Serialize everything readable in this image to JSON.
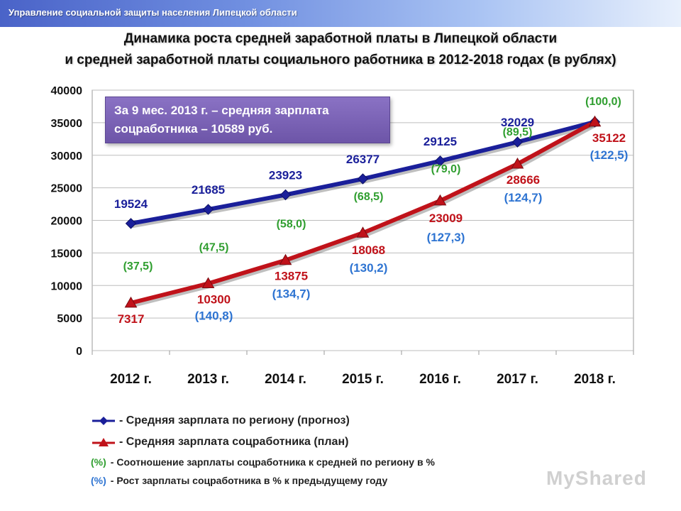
{
  "header": {
    "org": "Управление социальной защиты населения Липецкой области"
  },
  "title_line1": "Динамика роста средней заработной платы в Липецкой области",
  "title_line2": "и средней заработной платы социального работника в 2012-2018 годах (в рублях)",
  "callout_line1": "За 9 мес. 2013 г. – средняя зарплата",
  "callout_line2": "соцработника – 10589 руб.",
  "colors": {
    "region": "#1a1f9a",
    "social": "#c0121a",
    "ratio": "#2f9e2f",
    "growth": "#2e74d2",
    "grid": "#bdbdbd"
  },
  "chart_data": {
    "type": "line",
    "categories": [
      "2012 г.",
      "2013 г.",
      "2014 г.",
      "2015 г.",
      "2016 г.",
      "2017 г.",
      "2018 г."
    ],
    "ylim": [
      0,
      40000
    ],
    "yticks": [
      0,
      5000,
      10000,
      15000,
      20000,
      25000,
      30000,
      35000,
      40000
    ],
    "grid": true,
    "legend_position": "bottom",
    "series": [
      {
        "name": "- Средняя зарплата по региону (прогноз)",
        "values": [
          19524,
          21685,
          23923,
          26377,
          29125,
          32029,
          35122
        ],
        "labels": [
          "19524",
          "21685",
          "23923",
          "26377",
          "29125",
          "32029",
          ""
        ]
      },
      {
        "name": "- Средняя зарплата соцработника (план)",
        "values": [
          7317,
          10300,
          13875,
          18068,
          23009,
          28666,
          35122
        ],
        "labels": [
          "7317",
          "10300",
          "13875",
          "18068",
          "23009",
          "28666",
          "35122"
        ],
        "ratio_labels": [
          "(37,5)",
          "(47,5)",
          "(58,0)",
          "(68,5)",
          "(79,0)",
          "(89,5)",
          "(100,0)"
        ],
        "growth_labels": [
          "",
          "(140,8)",
          "(134,7)",
          "(130,2)",
          "(127,3)",
          "(124,7)",
          "(122,5)"
        ]
      }
    ]
  },
  "legend": {
    "region": "- Средняя зарплата по региону (прогноз)",
    "social": "- Средняя зарплата соцработника (план)",
    "ratio_mark": "(%)",
    "ratio_text": "- Соотношение зарплаты соцработника к средней по региону в %",
    "growth_mark": "(%)",
    "growth_text": "- Рост зарплаты соцработника в % к предыдущему году"
  },
  "watermark": "MyShared"
}
